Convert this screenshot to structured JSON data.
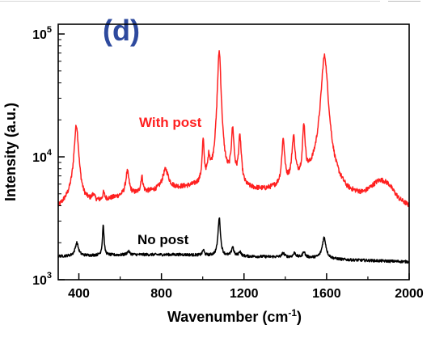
{
  "panel_label": "(d)",
  "colors": {
    "with_post": "#ff2020",
    "no_post": "#000000",
    "panel_label": "#2e4a9e",
    "axis": "#000000"
  },
  "chart_data": {
    "type": "line",
    "title": "",
    "xlabel_main": "Wavenumber (cm",
    "xlabel_sup": "-1",
    "xlabel_end": ")",
    "ylabel": "Intensity (a.u.)",
    "xlim": [
      300,
      2000
    ],
    "ylim": [
      1000,
      120000
    ],
    "yscale": "log",
    "grid": false,
    "x_ticks": [
      "400",
      "800",
      "1200",
      "1600",
      "2000"
    ],
    "x_tick_values": [
      400,
      800,
      1200,
      1600,
      2000
    ],
    "y_ticks": [
      {
        "value": 1000,
        "base": "10",
        "exp": "3"
      },
      {
        "value": 10000,
        "base": "10",
        "exp": "4"
      },
      {
        "value": 100000,
        "base": "10",
        "exp": "5"
      }
    ],
    "series": [
      {
        "name": "With post",
        "baseline": [
          [
            300,
            3800
          ],
          [
            360,
            4500
          ],
          [
            420,
            4200
          ],
          [
            500,
            4300
          ],
          [
            600,
            4700
          ],
          [
            700,
            5000
          ],
          [
            800,
            5300
          ],
          [
            900,
            5500
          ],
          [
            1000,
            5700
          ],
          [
            1060,
            6000
          ],
          [
            1100,
            5700
          ],
          [
            1200,
            5300
          ],
          [
            1300,
            5200
          ],
          [
            1400,
            5500
          ],
          [
            1500,
            6000
          ],
          [
            1560,
            6500
          ],
          [
            1640,
            5200
          ],
          [
            1700,
            4600
          ],
          [
            1780,
            4500
          ],
          [
            1860,
            5200
          ],
          [
            1900,
            5200
          ],
          [
            1950,
            4200
          ],
          [
            2000,
            3800
          ]
        ],
        "peaks": [
          {
            "x": 388,
            "y": 18000,
            "w": 11
          },
          {
            "x": 470,
            "y": 4800,
            "w": 6
          },
          {
            "x": 520,
            "y": 5000,
            "w": 5
          },
          {
            "x": 635,
            "y": 7500,
            "w": 9
          },
          {
            "x": 705,
            "y": 6800,
            "w": 6
          },
          {
            "x": 820,
            "y": 7800,
            "w": 16
          },
          {
            "x": 1002,
            "y": 13000,
            "w": 5
          },
          {
            "x": 1030,
            "y": 9000,
            "w": 6
          },
          {
            "x": 1080,
            "y": 72000,
            "w": 8
          },
          {
            "x": 1145,
            "y": 16000,
            "w": 7
          },
          {
            "x": 1180,
            "y": 14000,
            "w": 7
          },
          {
            "x": 1390,
            "y": 13500,
            "w": 7
          },
          {
            "x": 1440,
            "y": 14000,
            "w": 8
          },
          {
            "x": 1490,
            "y": 17500,
            "w": 6
          },
          {
            "x": 1590,
            "y": 66000,
            "w": 15
          },
          {
            "x": 1860,
            "y": 6300,
            "w": 55
          }
        ],
        "noise": 0.045
      },
      {
        "name": "No post",
        "baseline": [
          [
            300,
            1550
          ],
          [
            500,
            1580
          ],
          [
            700,
            1600
          ],
          [
            900,
            1600
          ],
          [
            1100,
            1560
          ],
          [
            1300,
            1540
          ],
          [
            1500,
            1520
          ],
          [
            1700,
            1450
          ],
          [
            2000,
            1400
          ]
        ],
        "peaks": [
          {
            "x": 390,
            "y": 2000,
            "w": 9
          },
          {
            "x": 518,
            "y": 2800,
            "w": 4
          },
          {
            "x": 640,
            "y": 1700,
            "w": 8
          },
          {
            "x": 1003,
            "y": 1750,
            "w": 5
          },
          {
            "x": 1080,
            "y": 3200,
            "w": 6
          },
          {
            "x": 1145,
            "y": 1850,
            "w": 6
          },
          {
            "x": 1180,
            "y": 1700,
            "w": 6
          },
          {
            "x": 1390,
            "y": 1650,
            "w": 7
          },
          {
            "x": 1445,
            "y": 1650,
            "w": 7
          },
          {
            "x": 1490,
            "y": 1700,
            "w": 6
          },
          {
            "x": 1588,
            "y": 2200,
            "w": 10
          }
        ],
        "noise": 0.025
      }
    ]
  }
}
